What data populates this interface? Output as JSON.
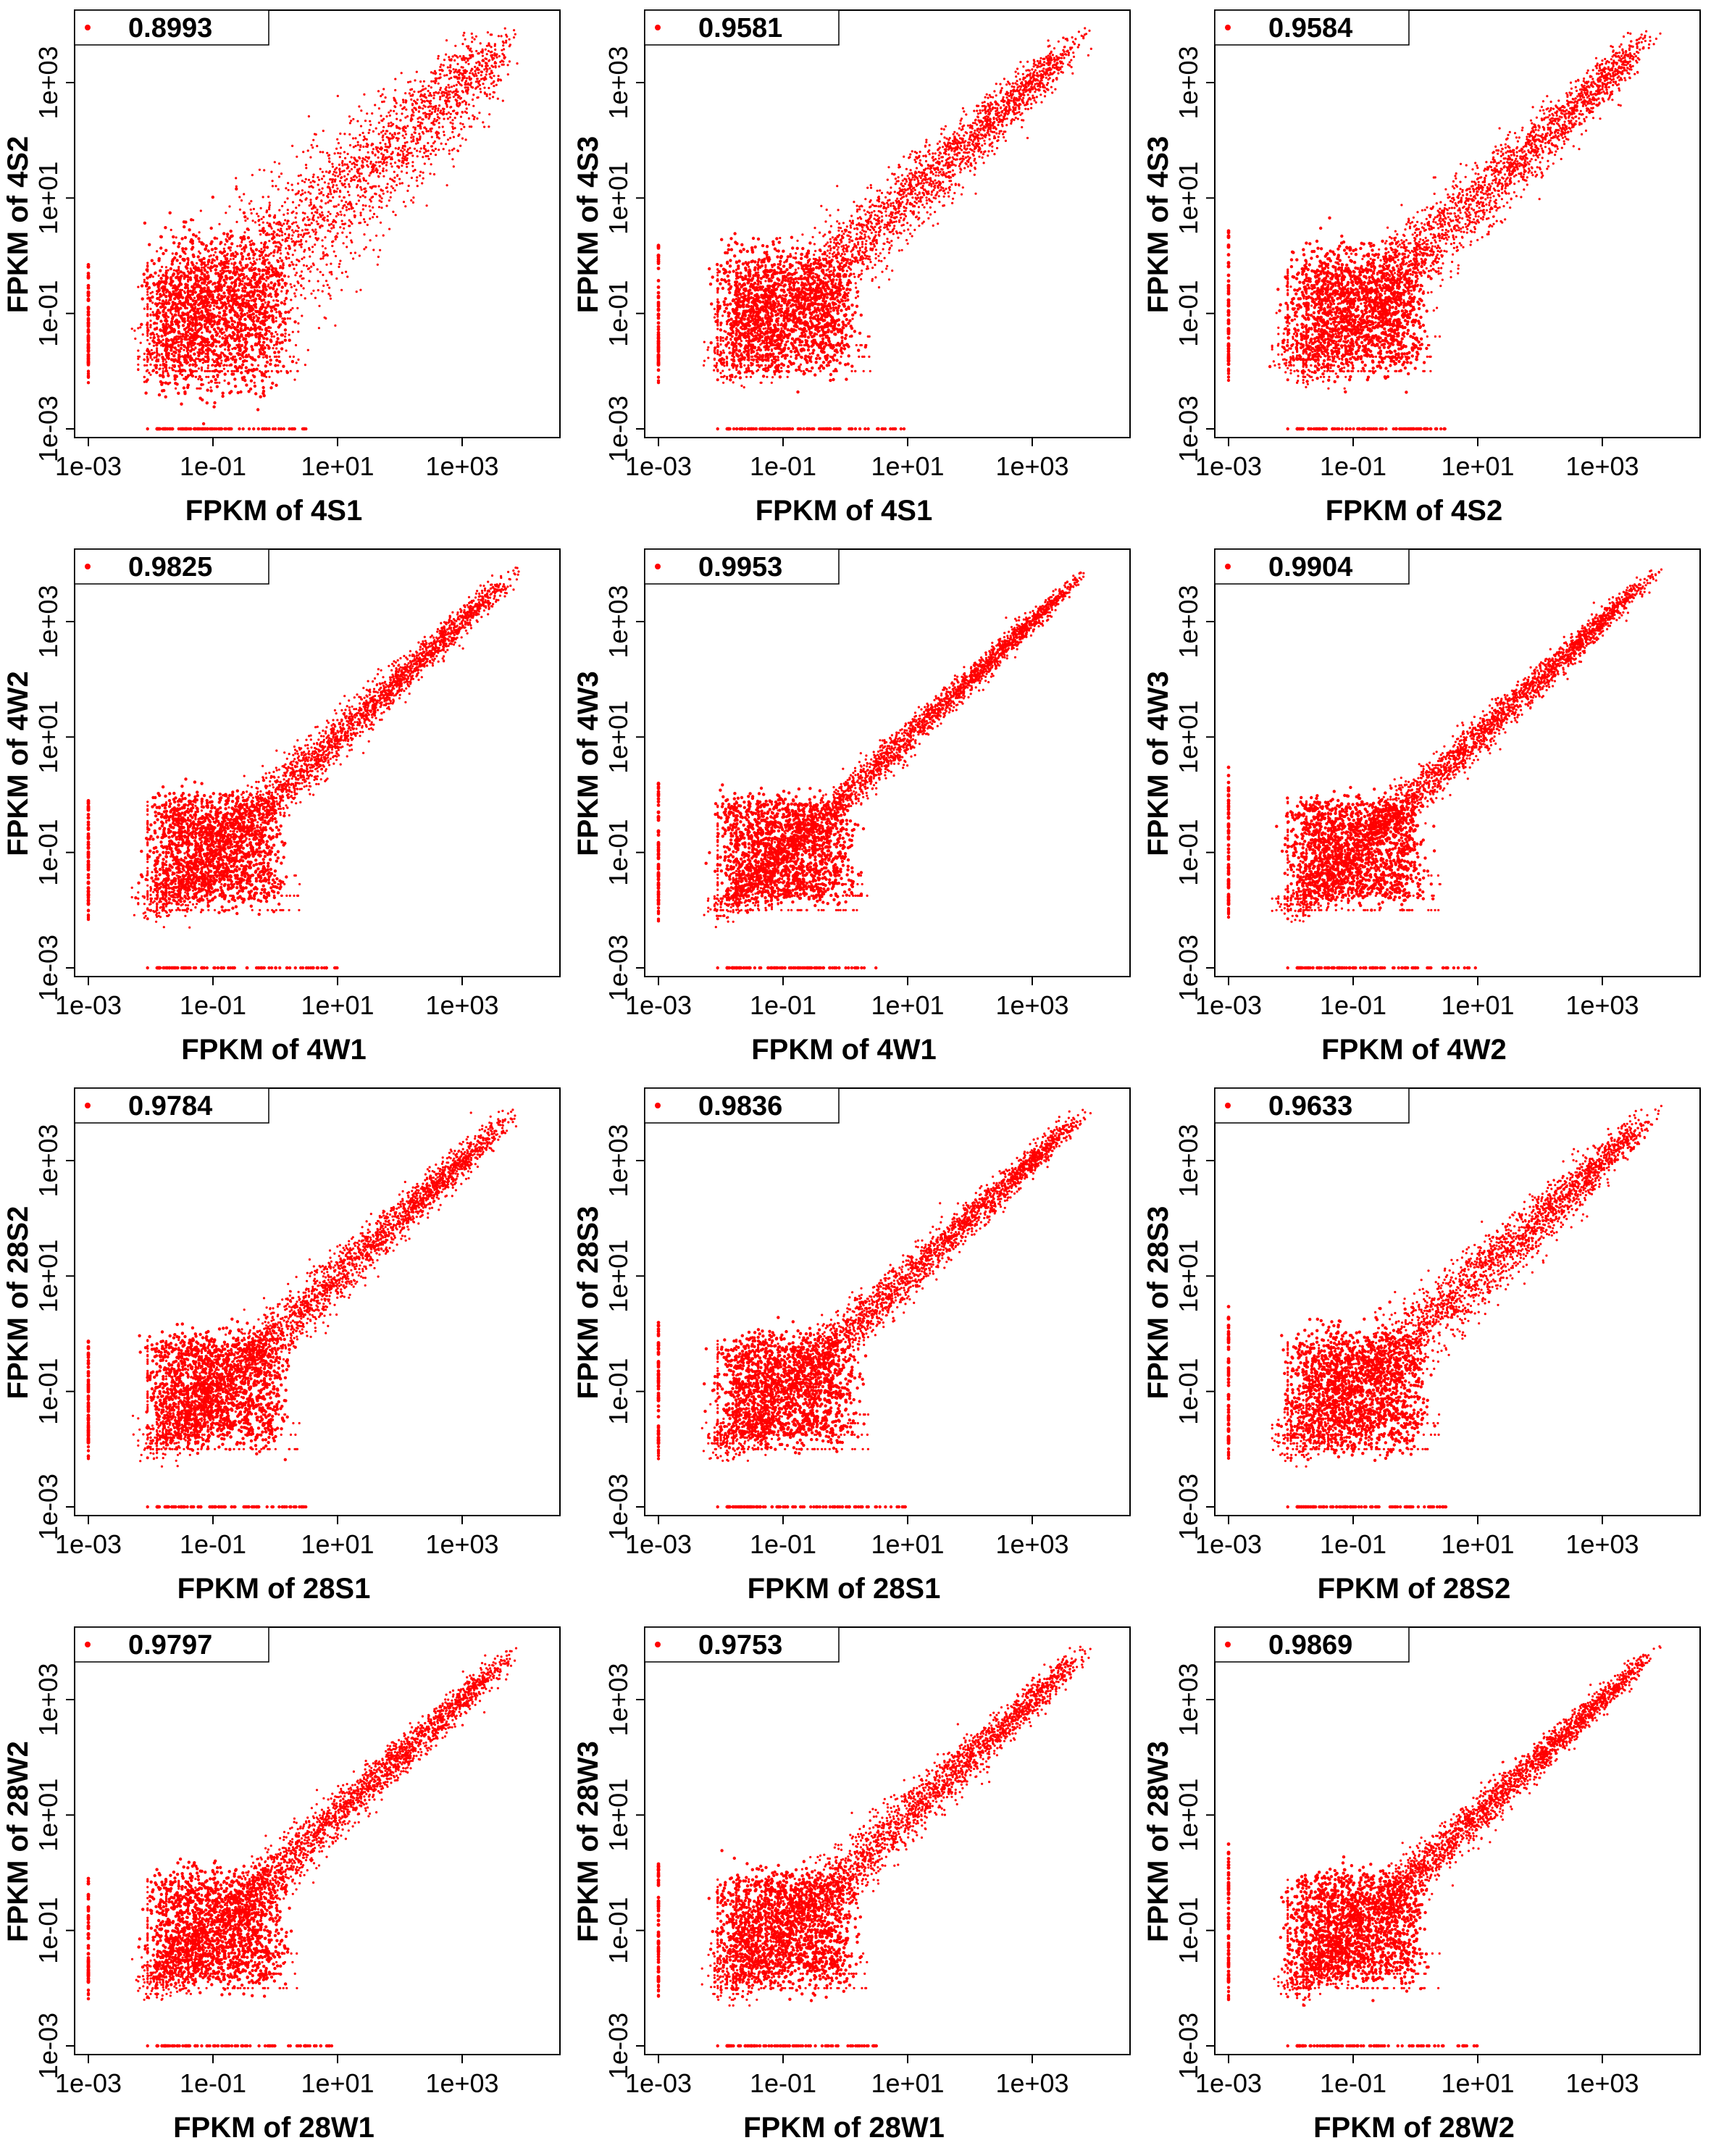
{
  "tick_labels": [
    "1e-03",
    "1e-01",
    "1e+01",
    "1e+03"
  ],
  "chart_data": [
    {
      "type": "scatter",
      "xlabel": "FPKM of 4S1",
      "ylabel": "FPKM of 4S2",
      "legend": "0.8993",
      "r": 0.8993,
      "xscale": "log",
      "yscale": "log",
      "xlim": [
        0.001,
        10000
      ],
      "ylim": [
        0.001,
        10000
      ],
      "legend_position": "top-left",
      "color": "#ff0000"
    },
    {
      "type": "scatter",
      "xlabel": "FPKM of 4S1",
      "ylabel": "FPKM of 4S3",
      "legend": "0.9581",
      "r": 0.9581,
      "xscale": "log",
      "yscale": "log",
      "xlim": [
        0.001,
        10000
      ],
      "ylim": [
        0.001,
        10000
      ],
      "legend_position": "top-left",
      "color": "#ff0000"
    },
    {
      "type": "scatter",
      "xlabel": "FPKM of 4S2",
      "ylabel": "FPKM of 4S3",
      "legend": "0.9584",
      "r": 0.9584,
      "xscale": "log",
      "yscale": "log",
      "xlim": [
        0.001,
        10000
      ],
      "ylim": [
        0.001,
        10000
      ],
      "legend_position": "top-left",
      "color": "#ff0000"
    },
    {
      "type": "scatter",
      "xlabel": "FPKM of 4W1",
      "ylabel": "FPKM of 4W2",
      "legend": "0.9825",
      "r": 0.9825,
      "xscale": "log",
      "yscale": "log",
      "xlim": [
        0.001,
        10000
      ],
      "ylim": [
        0.001,
        10000
      ],
      "legend_position": "top-left",
      "color": "#ff0000"
    },
    {
      "type": "scatter",
      "xlabel": "FPKM of 4W1",
      "ylabel": "FPKM of 4W3",
      "legend": "0.9953",
      "r": 0.9953,
      "xscale": "log",
      "yscale": "log",
      "xlim": [
        0.001,
        10000
      ],
      "ylim": [
        0.001,
        10000
      ],
      "legend_position": "top-left",
      "color": "#ff0000"
    },
    {
      "type": "scatter",
      "xlabel": "FPKM of 4W2",
      "ylabel": "FPKM of 4W3",
      "legend": "0.9904",
      "r": 0.9904,
      "xscale": "log",
      "yscale": "log",
      "xlim": [
        0.001,
        10000
      ],
      "ylim": [
        0.001,
        10000
      ],
      "legend_position": "top-left",
      "color": "#ff0000"
    },
    {
      "type": "scatter",
      "xlabel": "FPKM of 28S1",
      "ylabel": "FPKM of 28S2",
      "legend": "0.9784",
      "r": 0.9784,
      "xscale": "log",
      "yscale": "log",
      "xlim": [
        0.001,
        10000
      ],
      "ylim": [
        0.001,
        10000
      ],
      "legend_position": "top-left",
      "color": "#ff0000"
    },
    {
      "type": "scatter",
      "xlabel": "FPKM of 28S1",
      "ylabel": "FPKM of 28S3",
      "legend": "0.9836",
      "r": 0.9836,
      "xscale": "log",
      "yscale": "log",
      "xlim": [
        0.001,
        10000
      ],
      "ylim": [
        0.001,
        10000
      ],
      "legend_position": "top-left",
      "color": "#ff0000"
    },
    {
      "type": "scatter",
      "xlabel": "FPKM of 28S2",
      "ylabel": "FPKM of 28S3",
      "legend": "0.9633",
      "r": 0.9633,
      "xscale": "log",
      "yscale": "log",
      "xlim": [
        0.001,
        10000
      ],
      "ylim": [
        0.001,
        10000
      ],
      "legend_position": "top-left",
      "color": "#ff0000"
    },
    {
      "type": "scatter",
      "xlabel": "FPKM of 28W1",
      "ylabel": "FPKM of 28W2",
      "legend": "0.9797",
      "r": 0.9797,
      "xscale": "log",
      "yscale": "log",
      "xlim": [
        0.001,
        10000
      ],
      "ylim": [
        0.001,
        10000
      ],
      "legend_position": "top-left",
      "color": "#ff0000"
    },
    {
      "type": "scatter",
      "xlabel": "FPKM of 28W1",
      "ylabel": "FPKM of 28W3",
      "legend": "0.9753",
      "r": 0.9753,
      "xscale": "log",
      "yscale": "log",
      "xlim": [
        0.001,
        10000
      ],
      "ylim": [
        0.001,
        10000
      ],
      "legend_position": "top-left",
      "color": "#ff0000"
    },
    {
      "type": "scatter",
      "xlabel": "FPKM of 28W2",
      "ylabel": "FPKM of 28W3",
      "legend": "0.9869",
      "r": 0.9869,
      "xscale": "log",
      "yscale": "log",
      "xlim": [
        0.001,
        10000
      ],
      "ylim": [
        0.001,
        10000
      ],
      "legend_position": "top-left",
      "color": "#ff0000"
    }
  ]
}
